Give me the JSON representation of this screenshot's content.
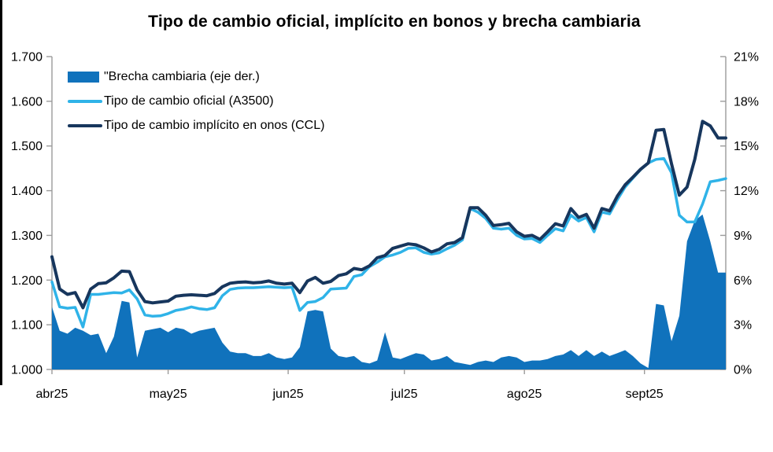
{
  "title": "Tipo de cambio oficial, implícito en bonos y brecha cambiaria",
  "legend": [
    {
      "label": "\"Brecha cambiaria (eje der.)",
      "type": "area",
      "color": "#1072BC"
    },
    {
      "label": "Tipo de cambio oficial (A3500)",
      "type": "line",
      "color": "#2FB3E8"
    },
    {
      "label": "Tipo de cambio implícito en onos (CCL)",
      "type": "line",
      "color": "#17365D"
    }
  ],
  "chart_data": {
    "type": "area+line combo",
    "title": "Tipo de cambio oficial, implícito en bonos y brecha cambiaria",
    "axis_color": "#9b9b9b",
    "grid": false,
    "legend_position": "top-left inside plot",
    "x_unit": "days since abr25 start",
    "x_start": 0,
    "x_step": 2,
    "x_end": 174,
    "x_ticks": [
      {
        "label": "abr25",
        "day": 0
      },
      {
        "label": "may25",
        "day": 30
      },
      {
        "label": "jun25",
        "day": 61
      },
      {
        "label": "jul25",
        "day": 91
      },
      {
        "label": "ago25",
        "day": 122
      },
      {
        "label": "sept25",
        "day": 153
      }
    ],
    "left_axis": {
      "min": 1000,
      "max": 1700,
      "tick_step": 100,
      "labels": [
        "1.000",
        "1.100",
        "1.200",
        "1.300",
        "1.400",
        "1.500",
        "1.600",
        "1.700"
      ]
    },
    "right_axis": {
      "min": 0,
      "max": 21,
      "tick_step": 3,
      "labels": [
        "0%",
        "3%",
        "6%",
        "9%",
        "12%",
        "15%",
        "18%",
        "21%"
      ]
    },
    "series": [
      {
        "name": "Brecha cambiaria (eje der.)",
        "axis": "right",
        "type": "area",
        "color": "#1072BC",
        "values": [
          4.2,
          2.6,
          2.4,
          2.8,
          2.6,
          2.3,
          2.4,
          1.1,
          2.2,
          4.6,
          4.5,
          0.8,
          2.6,
          2.7,
          2.8,
          2.5,
          2.8,
          2.7,
          2.4,
          2.6,
          2.7,
          2.8,
          1.8,
          1.2,
          1.1,
          1.1,
          0.9,
          0.9,
          1.1,
          0.8,
          0.7,
          0.8,
          1.5,
          3.9,
          4.0,
          3.9,
          1.4,
          0.9,
          0.8,
          0.9,
          0.5,
          0.4,
          0.6,
          2.5,
          0.8,
          0.7,
          0.9,
          1.1,
          1.0,
          0.6,
          0.7,
          0.9,
          0.5,
          0.4,
          0.3,
          0.5,
          0.6,
          0.5,
          0.8,
          0.9,
          0.8,
          0.5,
          0.6,
          0.6,
          0.7,
          0.9,
          1.0,
          1.3,
          0.9,
          1.3,
          0.9,
          1.2,
          0.9,
          1.1,
          1.3,
          0.9,
          0.4,
          0.1,
          4.4,
          4.3,
          1.9,
          3.6,
          8.6,
          10.0,
          10.4,
          8.6,
          6.5,
          6.5
        ]
      },
      {
        "name": "Tipo de cambio oficial (A3500)",
        "axis": "left",
        "type": "line",
        "color": "#2FB3E8",
        "values": [
          1196,
          1140,
          1137,
          1139,
          1095,
          1168,
          1168,
          1170,
          1172,
          1171,
          1178,
          1158,
          1122,
          1119,
          1120,
          1125,
          1132,
          1135,
          1140,
          1136,
          1134,
          1138,
          1165,
          1179,
          1182,
          1183,
          1183,
          1184,
          1185,
          1184,
          1183,
          1184,
          1132,
          1150,
          1152,
          1161,
          1180,
          1181,
          1182,
          1208,
          1212,
          1230,
          1240,
          1252,
          1256,
          1262,
          1271,
          1272,
          1262,
          1258,
          1261,
          1270,
          1278,
          1290,
          1360,
          1352,
          1338,
          1316,
          1314,
          1316,
          1300,
          1292,
          1293,
          1284,
          1300,
          1315,
          1310,
          1345,
          1332,
          1340,
          1308,
          1352,
          1348,
          1380,
          1408,
          1428,
          1447,
          1462,
          1470,
          1472,
          1440,
          1345,
          1330,
          1330,
          1370,
          1420,
          1423,
          1427
        ]
      },
      {
        "name": "Tipo de cambio implícito en onos (CCL)",
        "axis": "left",
        "type": "line",
        "color": "#17365D",
        "values": [
          1252,
          1180,
          1168,
          1172,
          1138,
          1180,
          1192,
          1194,
          1205,
          1220,
          1219,
          1178,
          1152,
          1149,
          1151,
          1153,
          1164,
          1166,
          1167,
          1166,
          1165,
          1170,
          1185,
          1193,
          1195,
          1196,
          1194,
          1195,
          1198,
          1193,
          1191,
          1193,
          1172,
          1198,
          1206,
          1193,
          1197,
          1210,
          1214,
          1226,
          1223,
          1232,
          1250,
          1255,
          1271,
          1276,
          1281,
          1279,
          1272,
          1263,
          1269,
          1281,
          1284,
          1295,
          1362,
          1362,
          1345,
          1322,
          1324,
          1327,
          1308,
          1298,
          1300,
          1291,
          1308,
          1326,
          1321,
          1360,
          1340,
          1347,
          1316,
          1360,
          1355,
          1388,
          1413,
          1430,
          1448,
          1462,
          1535,
          1537,
          1460,
          1390,
          1408,
          1470,
          1555,
          1545,
          1518,
          1518
        ]
      }
    ]
  }
}
